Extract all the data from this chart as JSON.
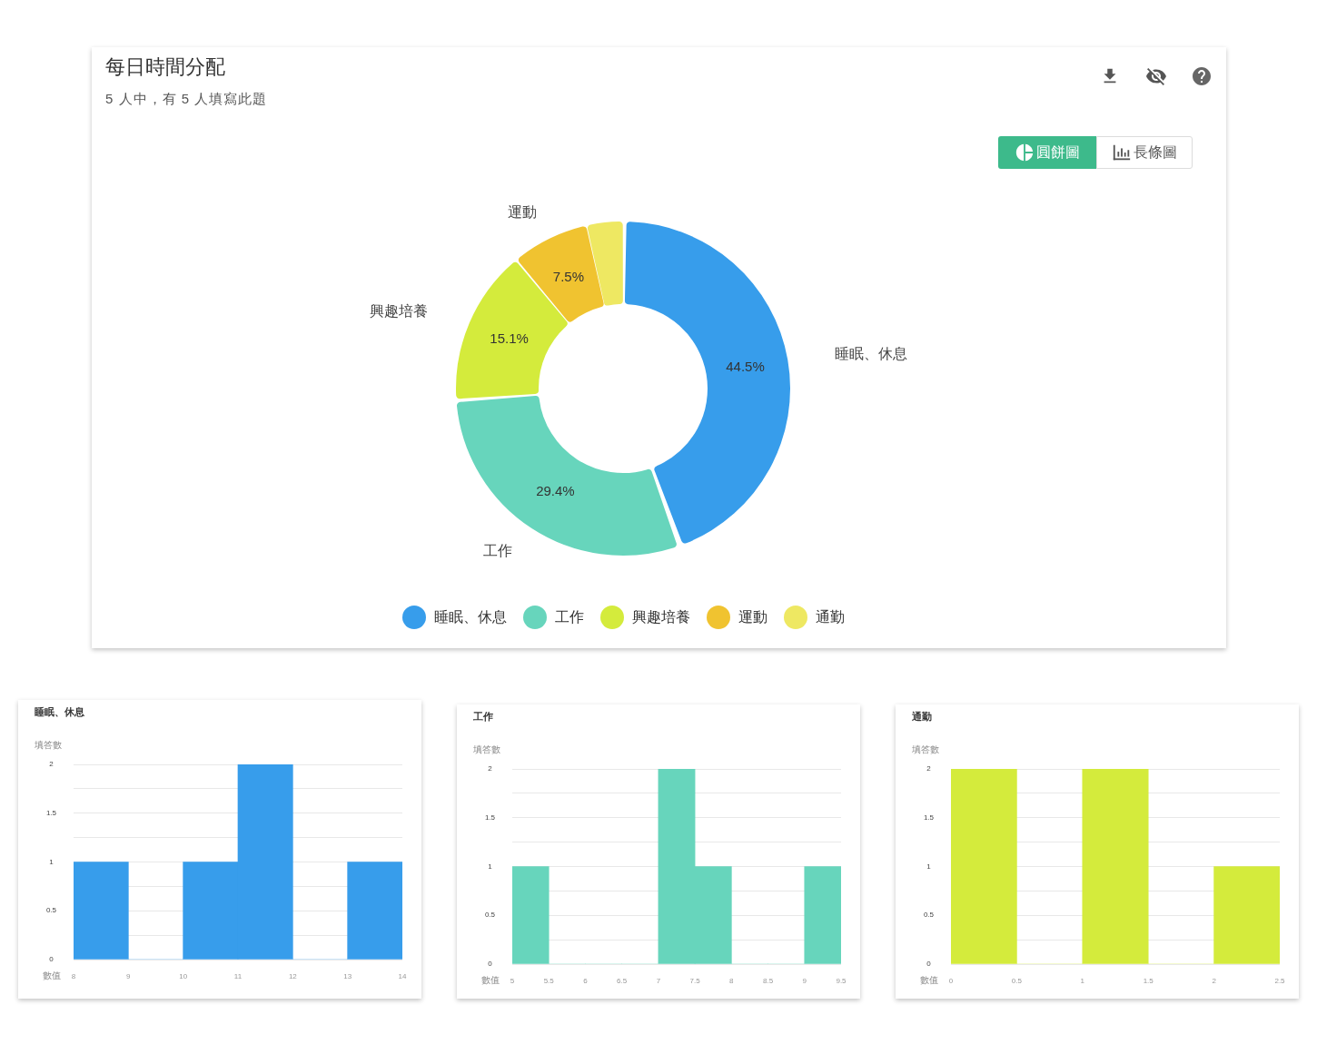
{
  "chart_data": [
    {
      "type": "donut",
      "title": "每日時間分配",
      "subtitle": "5 人中，有 5 人填寫此題",
      "categories": [
        "睡眠、休息",
        "工作",
        "興趣培養",
        "運動",
        "通勤"
      ],
      "values": [
        44.5,
        29.4,
        15.1,
        7.5,
        3.5
      ],
      "colors": [
        "#379deb",
        "#67d5bc",
        "#d4eb3c",
        "#f0c330",
        "#eee862"
      ],
      "value_labels": [
        "44.5%",
        "29.4%",
        "15.1%",
        "7.5%",
        null
      ],
      "legend": "bottom",
      "annotations": [
        "圓餅圖",
        "長條圖"
      ]
    },
    {
      "type": "histogram",
      "title": "睡眠、休息",
      "xlabel": "數值",
      "ylabel": "填答數",
      "bins": [
        8,
        9,
        10,
        11,
        12,
        13,
        14
      ],
      "values": [
        1,
        0,
        1,
        2,
        0,
        1
      ],
      "color": "#379deb",
      "xlim": [
        8,
        14
      ],
      "xticks": [
        8,
        9,
        10,
        11,
        12,
        13,
        14
      ],
      "ylim": [
        0,
        2
      ],
      "yticks": [
        0,
        {
          "value": 0.25,
          "label": null
        },
        0.5,
        {
          "value": 0.75,
          "label": null
        },
        1,
        {
          "value": 1.25,
          "label": null
        },
        1.5,
        {
          "value": 1.75,
          "label": null
        },
        2
      ],
      "grid": "y"
    },
    {
      "type": "histogram",
      "title": "工作",
      "xlabel": "數值",
      "ylabel": "填答數",
      "bins": [
        5,
        5.5,
        6,
        6.5,
        7,
        7.5,
        8,
        8.5,
        9,
        9.5
      ],
      "values": [
        1,
        0,
        0,
        0,
        2,
        1,
        0,
        0,
        1
      ],
      "color": "#67d5bc",
      "xlim": [
        5,
        9.5
      ],
      "xticks": [
        5,
        5.5,
        6,
        6.5,
        7,
        7.5,
        8,
        8.5,
        9,
        9.5
      ],
      "ylim": [
        0,
        2
      ],
      "yticks": [
        0,
        {
          "value": 0.25,
          "label": null
        },
        0.5,
        {
          "value": 0.75,
          "label": null
        },
        1,
        {
          "value": 1.25,
          "label": null
        },
        1.5,
        {
          "value": 1.75,
          "label": null
        },
        2
      ],
      "grid": "y"
    },
    {
      "type": "histogram",
      "title": "通勤",
      "xlabel": "數值",
      "ylabel": "填答數",
      "bins": [
        0,
        0.5,
        1,
        1.5,
        2,
        2.5
      ],
      "values": [
        2,
        0,
        2,
        0,
        1
      ],
      "color": "#d4eb3c",
      "xlim": [
        0,
        2.5
      ],
      "xticks": [
        0,
        0.5,
        1,
        1.5,
        2,
        2.5
      ],
      "ylim": [
        0,
        2
      ],
      "yticks": [
        0,
        {
          "value": 0.25,
          "label": null
        },
        0.5,
        {
          "value": 0.75,
          "label": null
        },
        1,
        {
          "value": 1.25,
          "label": null
        },
        1.5,
        {
          "value": 1.75,
          "label": null
        },
        2
      ],
      "grid": "y"
    }
  ]
}
